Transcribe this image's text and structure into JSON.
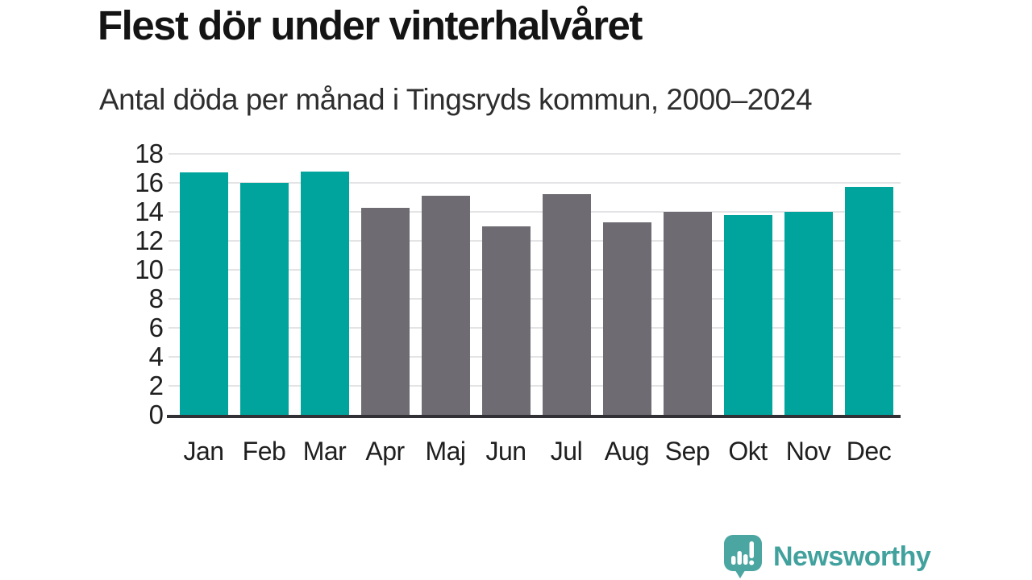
{
  "chart_data": {
    "type": "bar",
    "title": "Flest dör under vinterhalvåret",
    "subtitle": "Antal döda per månad i Tingsryds kommun, 2000–2024",
    "categories": [
      "Jan",
      "Feb",
      "Mar",
      "Apr",
      "Maj",
      "Jun",
      "Jul",
      "Aug",
      "Sep",
      "Okt",
      "Nov",
      "Dec"
    ],
    "values": [
      16.7,
      16.0,
      16.8,
      14.3,
      15.1,
      13.0,
      15.2,
      13.3,
      14.0,
      13.8,
      14.0,
      15.7
    ],
    "bar_seasons": [
      "winter",
      "winter",
      "winter",
      "summer",
      "summer",
      "summer",
      "summer",
      "summer",
      "summer",
      "winter",
      "winter",
      "winter"
    ],
    "bar_palette": {
      "winter": "#00A49C",
      "summer": "#6E6C72"
    },
    "xlabel": "",
    "ylabel": "",
    "ylim": [
      0,
      18
    ],
    "yticks": [
      0,
      2,
      4,
      6,
      8,
      10,
      12,
      14,
      16,
      18
    ],
    "grid": "horizontal",
    "legend": "none"
  },
  "branding": {
    "logo_text": "Newsworthy",
    "logo_bubble_color": "#4BA6A2",
    "logo_text_color": "#41A19D"
  }
}
